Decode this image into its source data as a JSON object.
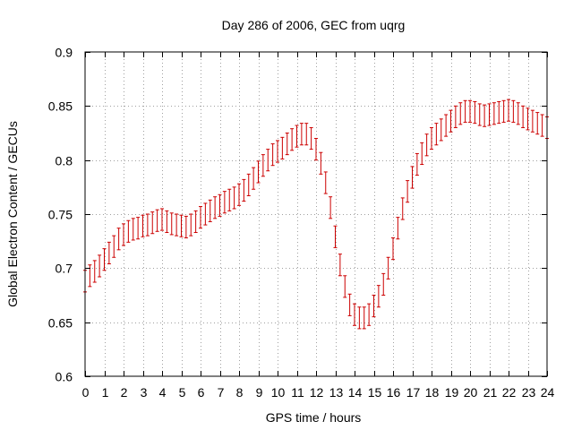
{
  "chart_data": {
    "type": "scatter",
    "title": "Day 286 of 2006, GEC from uqrg",
    "xlabel": "GPS time / hours",
    "ylabel": "Global Electron Content / GECUs",
    "xlim": [
      0,
      24
    ],
    "ylim": [
      0.6,
      0.9
    ],
    "grid": true,
    "xticks": [
      0,
      1,
      2,
      3,
      4,
      5,
      6,
      7,
      8,
      9,
      10,
      11,
      12,
      13,
      14,
      15,
      16,
      17,
      18,
      19,
      20,
      21,
      22,
      23,
      24
    ],
    "xtick_labels": [
      "0",
      "1",
      "2",
      "3",
      "4",
      "5",
      "6",
      "7",
      "8",
      "9",
      "10",
      "11",
      "12",
      "13",
      "14",
      "15",
      "16",
      "17",
      "18",
      "19",
      "20",
      "21",
      "22",
      "23",
      "24"
    ],
    "yticks": [
      0.6,
      0.65,
      0.7,
      0.75,
      0.8,
      0.85,
      0.9
    ],
    "ytick_labels": [
      "0.6",
      "0.65",
      "0.7",
      "0.75",
      "0.8",
      "0.85",
      "0.9"
    ],
    "series": [
      {
        "name": "GEC",
        "color": "#cc0000",
        "error": 0.01,
        "x": [
          0,
          0.25,
          0.5,
          0.75,
          1,
          1.25,
          1.5,
          1.75,
          2,
          2.25,
          2.5,
          2.75,
          3,
          3.25,
          3.5,
          3.75,
          4,
          4.25,
          4.5,
          4.75,
          5,
          5.25,
          5.5,
          5.75,
          6,
          6.25,
          6.5,
          6.75,
          7,
          7.25,
          7.5,
          7.75,
          8,
          8.25,
          8.5,
          8.75,
          9,
          9.25,
          9.5,
          9.75,
          10,
          10.25,
          10.5,
          10.75,
          11,
          11.25,
          11.5,
          11.75,
          12,
          12.25,
          12.5,
          12.75,
          13,
          13.25,
          13.5,
          13.75,
          14,
          14.25,
          14.5,
          14.75,
          15,
          15.25,
          15.5,
          15.75,
          16,
          16.25,
          16.5,
          16.75,
          17,
          17.25,
          17.5,
          17.75,
          18,
          18.25,
          18.5,
          18.75,
          19,
          19.25,
          19.5,
          19.75,
          20,
          20.25,
          20.5,
          20.75,
          21,
          21.25,
          21.5,
          21.75,
          22,
          22.25,
          22.5,
          22.75,
          23,
          23.25,
          23.5,
          23.75,
          24
        ],
        "y": [
          0.688,
          0.693,
          0.697,
          0.702,
          0.708,
          0.714,
          0.72,
          0.727,
          0.731,
          0.734,
          0.736,
          0.737,
          0.739,
          0.74,
          0.742,
          0.744,
          0.745,
          0.743,
          0.741,
          0.74,
          0.739,
          0.738,
          0.74,
          0.743,
          0.747,
          0.75,
          0.753,
          0.756,
          0.758,
          0.761,
          0.763,
          0.765,
          0.768,
          0.772,
          0.777,
          0.783,
          0.789,
          0.795,
          0.8,
          0.805,
          0.808,
          0.811,
          0.815,
          0.819,
          0.822,
          0.824,
          0.824,
          0.82,
          0.81,
          0.797,
          0.779,
          0.756,
          0.729,
          0.703,
          0.683,
          0.666,
          0.657,
          0.654,
          0.654,
          0.657,
          0.665,
          0.674,
          0.685,
          0.7,
          0.718,
          0.737,
          0.755,
          0.771,
          0.784,
          0.796,
          0.806,
          0.814,
          0.82,
          0.824,
          0.828,
          0.832,
          0.836,
          0.84,
          0.843,
          0.845,
          0.845,
          0.844,
          0.842,
          0.841,
          0.842,
          0.843,
          0.844,
          0.845,
          0.846,
          0.845,
          0.843,
          0.84,
          0.838,
          0.836,
          0.834,
          0.832,
          0.83
        ]
      }
    ]
  }
}
